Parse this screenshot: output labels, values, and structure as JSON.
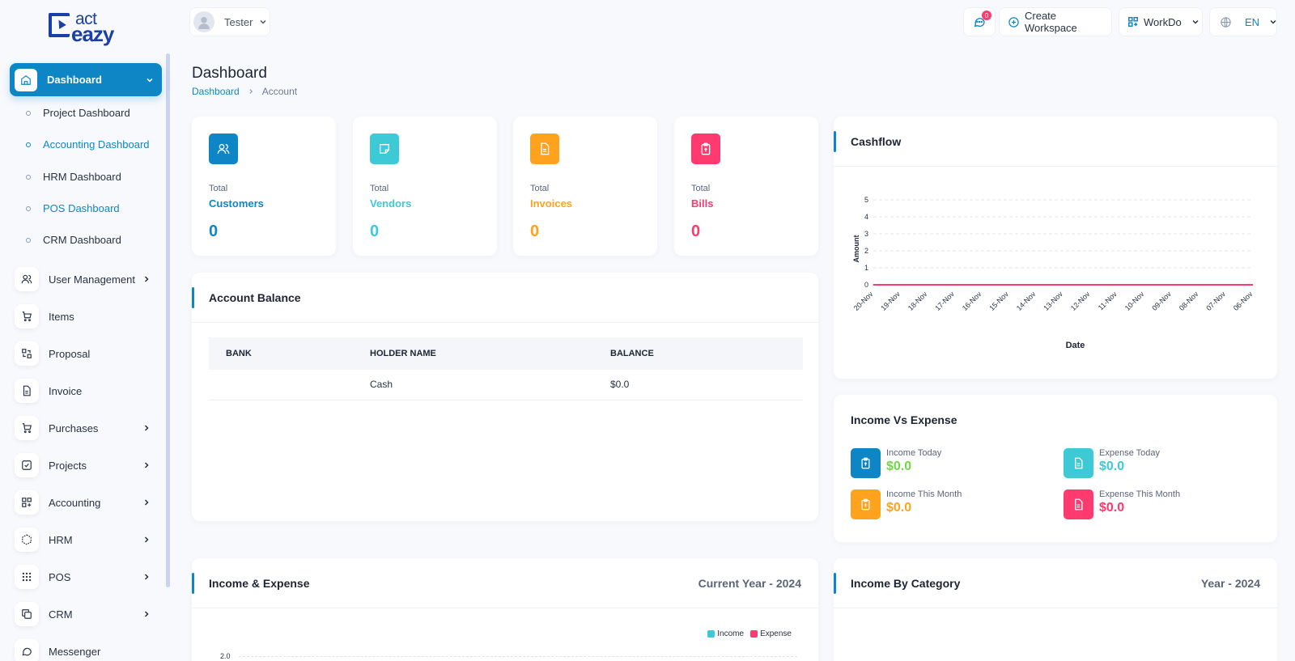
{
  "app": {
    "logo_top": "act",
    "logo_bottom": "eazy"
  },
  "sidebar": {
    "active": {
      "label": "Dashboard"
    },
    "sub_items": [
      {
        "label": "Project Dashboard"
      },
      {
        "label": "Accounting Dashboard"
      },
      {
        "label": "HRM Dashboard"
      },
      {
        "label": "POS Dashboard"
      },
      {
        "label": "CRM Dashboard"
      }
    ],
    "items": [
      {
        "label": "User Management",
        "icon": "users-icon"
      },
      {
        "label": "Items",
        "icon": "cart-icon"
      },
      {
        "label": "Proposal",
        "icon": "exchange-icon"
      },
      {
        "label": "Invoice",
        "icon": "file-icon"
      },
      {
        "label": "Purchases",
        "icon": "cart-icon"
      },
      {
        "label": "Projects",
        "icon": "check-square-icon"
      },
      {
        "label": "Accounting",
        "icon": "grid-icon"
      },
      {
        "label": "HRM",
        "icon": "cube-icon"
      },
      {
        "label": "POS",
        "icon": "dots-grid-icon"
      },
      {
        "label": "CRM",
        "icon": "copy-icon"
      },
      {
        "label": "Messenger",
        "icon": "chat-icon"
      }
    ]
  },
  "header": {
    "user_name": "Tester",
    "message_count": "0",
    "create_workspace": "Create Workspace",
    "workspace": "WorkDo",
    "language": "EN"
  },
  "page": {
    "title": "Dashboard",
    "breadcrumb": [
      "Dashboard",
      "Account"
    ]
  },
  "stats": [
    {
      "total": "Total",
      "name": "Customers",
      "value": "0",
      "color": "#0e86c6",
      "icon": "users-icon"
    },
    {
      "total": "Total",
      "name": "Vendors",
      "value": "0",
      "color": "#3ec9d6",
      "icon": "note-icon"
    },
    {
      "total": "Total",
      "name": "Invoices",
      "value": "0",
      "color": "#ffa21d",
      "icon": "file-icon"
    },
    {
      "total": "Total",
      "name": "Bills",
      "value": "0",
      "color": "#ff3a6e",
      "icon": "clipboard-icon"
    }
  ],
  "account_balance": {
    "title": "Account Balance",
    "columns": [
      "BANK",
      "HOLDER NAME",
      "BALANCE"
    ],
    "rows": [
      {
        "bank": "",
        "holder": "Cash",
        "balance": "$0.0"
      }
    ]
  },
  "cashflow": {
    "title": "Cashflow"
  },
  "chart_data": {
    "type": "line",
    "title": "Cashflow",
    "xlabel": "Date",
    "ylabel": "Amount",
    "x": [
      "20-Nov",
      "19-Nov",
      "18-Nov",
      "17-Nov",
      "16-Nov",
      "15-Nov",
      "14-Nov",
      "13-Nov",
      "12-Nov",
      "11-Nov",
      "10-Nov",
      "09-Nov",
      "08-Nov",
      "07-Nov",
      "06-Nov"
    ],
    "series": [
      {
        "values": [
          0,
          0,
          0,
          0,
          0,
          0,
          0,
          0,
          0,
          0,
          0,
          0,
          0,
          0,
          0
        ],
        "color": "#ff3a6e"
      }
    ],
    "ylim": [
      0,
      5
    ],
    "yticks": [
      "0",
      "1",
      "2",
      "3",
      "4",
      "5"
    ],
    "grid": true
  },
  "income_vs_expense": {
    "title": "Income Vs Expense",
    "items": [
      {
        "label": "Income Today",
        "value": "$0.0",
        "color": "#0e86c6",
        "text_color": "#6fd943",
        "icon": "clipboard-icon"
      },
      {
        "label": "Expense Today",
        "value": "$0.0",
        "color": "#3ec9d6",
        "text_color": "#3ec9d6",
        "icon": "file-icon"
      },
      {
        "label": "Income This Month",
        "value": "$0.0",
        "color": "#ffa21d",
        "text_color": "#ffa21d",
        "icon": "clipboard-icon"
      },
      {
        "label": "Expense This Month",
        "value": "$0.0",
        "color": "#ff3a6e",
        "text_color": "#ff3a6e",
        "icon": "file-icon"
      }
    ]
  },
  "income_expense": {
    "title": "Income & Expense",
    "period": "Current Year - 2024",
    "legend": [
      {
        "name": "Income",
        "color": "#3ec9d6"
      },
      {
        "name": "Expense",
        "color": "#ff3a6e"
      }
    ],
    "first_tick": "2.0"
  },
  "income_by_category": {
    "title": "Income By Category",
    "period": "Year - 2024"
  }
}
